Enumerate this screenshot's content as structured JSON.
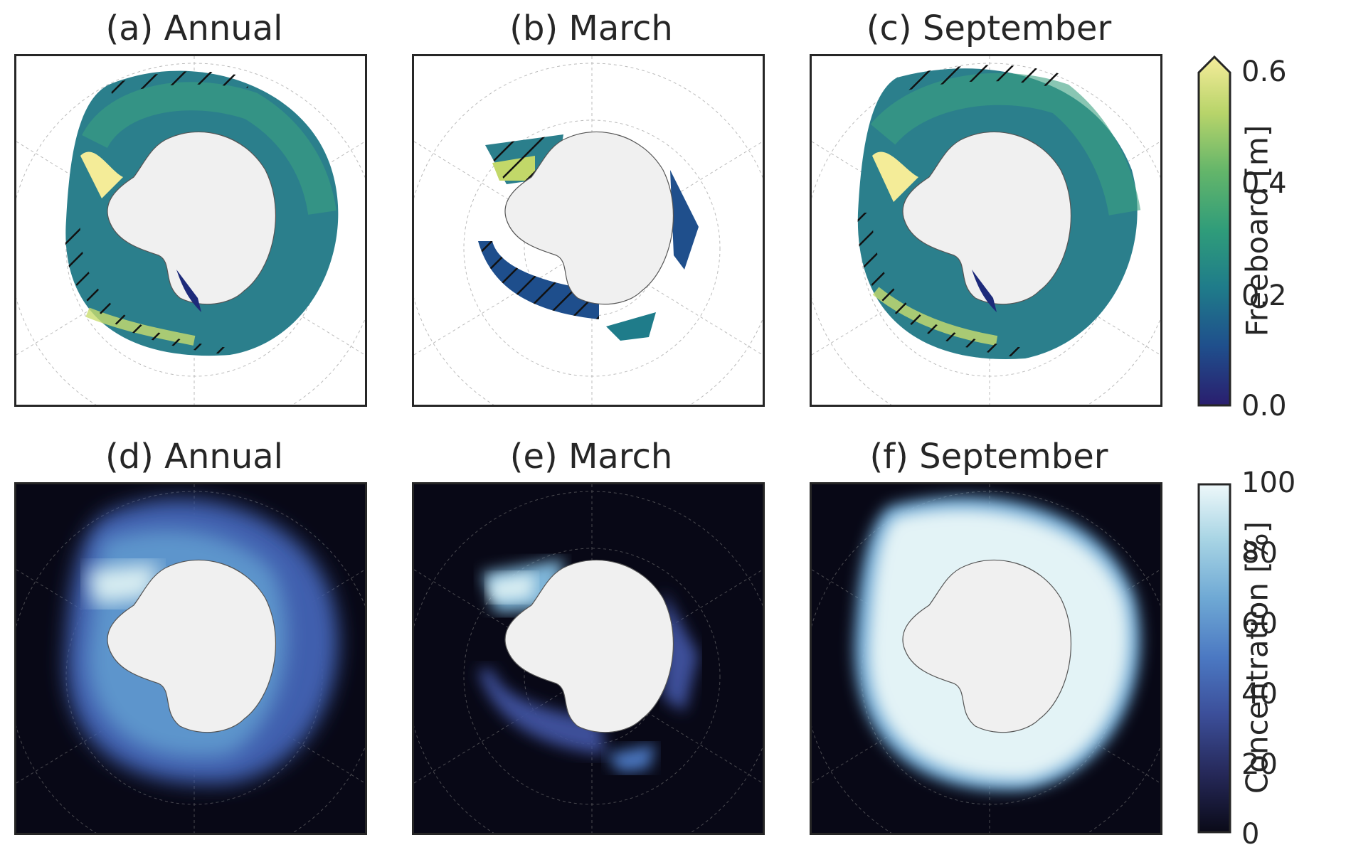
{
  "panels": [
    {
      "title": "(a) Annual",
      "row": "freeboard",
      "period": "annual"
    },
    {
      "title": "(b) March",
      "row": "freeboard",
      "period": "march"
    },
    {
      "title": "(c) September",
      "row": "freeboard",
      "period": "september"
    },
    {
      "title": "(d) Annual",
      "row": "concentration",
      "period": "annual"
    },
    {
      "title": "(e) March",
      "row": "concentration",
      "period": "march"
    },
    {
      "title": "(f) September",
      "row": "concentration",
      "period": "september"
    }
  ],
  "colorbars": {
    "freeboard": {
      "label": "Freeboard [m]",
      "ticks": [
        "0.0",
        "0.2",
        "0.4",
        "0.6"
      ],
      "range": [
        0.0,
        0.6
      ],
      "extend": "max",
      "colors": [
        "#2a1e6e",
        "#1f4f8c",
        "#1f7c8a",
        "#2f9c7a",
        "#63b56a",
        "#b8d46a",
        "#f5ec9a"
      ]
    },
    "concentration": {
      "label": "Concentration [%]",
      "ticks": [
        "0",
        "20",
        "40",
        "60",
        "80",
        "100"
      ],
      "range": [
        0,
        100
      ],
      "colors": [
        "#0a0a18",
        "#26295a",
        "#3c4f9a",
        "#4b78c2",
        "#6ea8d4",
        "#a7d4e4",
        "#eef8fa"
      ]
    }
  },
  "colors": {
    "land": "#f0f0f0",
    "ocean_freeboard_bg": "#ffffff",
    "ocean_concentration_bg": "#080816",
    "frame": "#262626"
  }
}
